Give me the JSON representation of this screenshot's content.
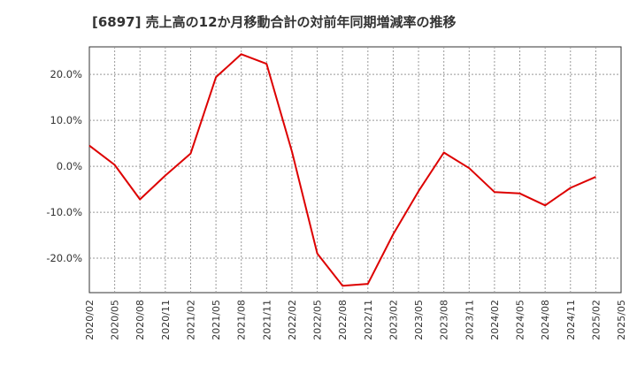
{
  "chart_data": {
    "type": "line",
    "title": "[6897]  売上高の12か月移動合計の対前年同期増減率の推移",
    "xlabel": "",
    "ylabel": "",
    "y_tick_values": [
      20,
      10,
      0,
      -10,
      -20
    ],
    "y_tick_labels": [
      "20.0%",
      "10.0%",
      "0.0%",
      "-10.0%",
      "-20.0%"
    ],
    "ylim": [
      -27.5,
      26.0
    ],
    "categories": [
      "2020/02",
      "2020/05",
      "2020/08",
      "2020/11",
      "2021/02",
      "2021/05",
      "2021/08",
      "2021/11",
      "2022/02",
      "2022/05",
      "2022/08",
      "2022/11",
      "2023/02",
      "2023/05",
      "2023/08",
      "2023/11",
      "2024/02",
      "2024/05",
      "2024/08",
      "2024/11",
      "2025/02",
      "2025/05"
    ],
    "series": [
      {
        "name": "対前年同期増減率",
        "color": "#dd0000",
        "values": [
          4.5,
          0.3,
          -7.2,
          -2.0,
          2.8,
          19.4,
          24.4,
          22.3,
          3.2,
          -19.0,
          -26.0,
          -25.6,
          -14.8,
          -5.4,
          3.0,
          -0.4,
          -5.6,
          -5.9,
          -8.5,
          -4.7,
          -2.3,
          null
        ]
      }
    ],
    "grid": true,
    "colors": {
      "line": "#dd0000",
      "grid": "#999999",
      "axis": "#333333"
    }
  }
}
